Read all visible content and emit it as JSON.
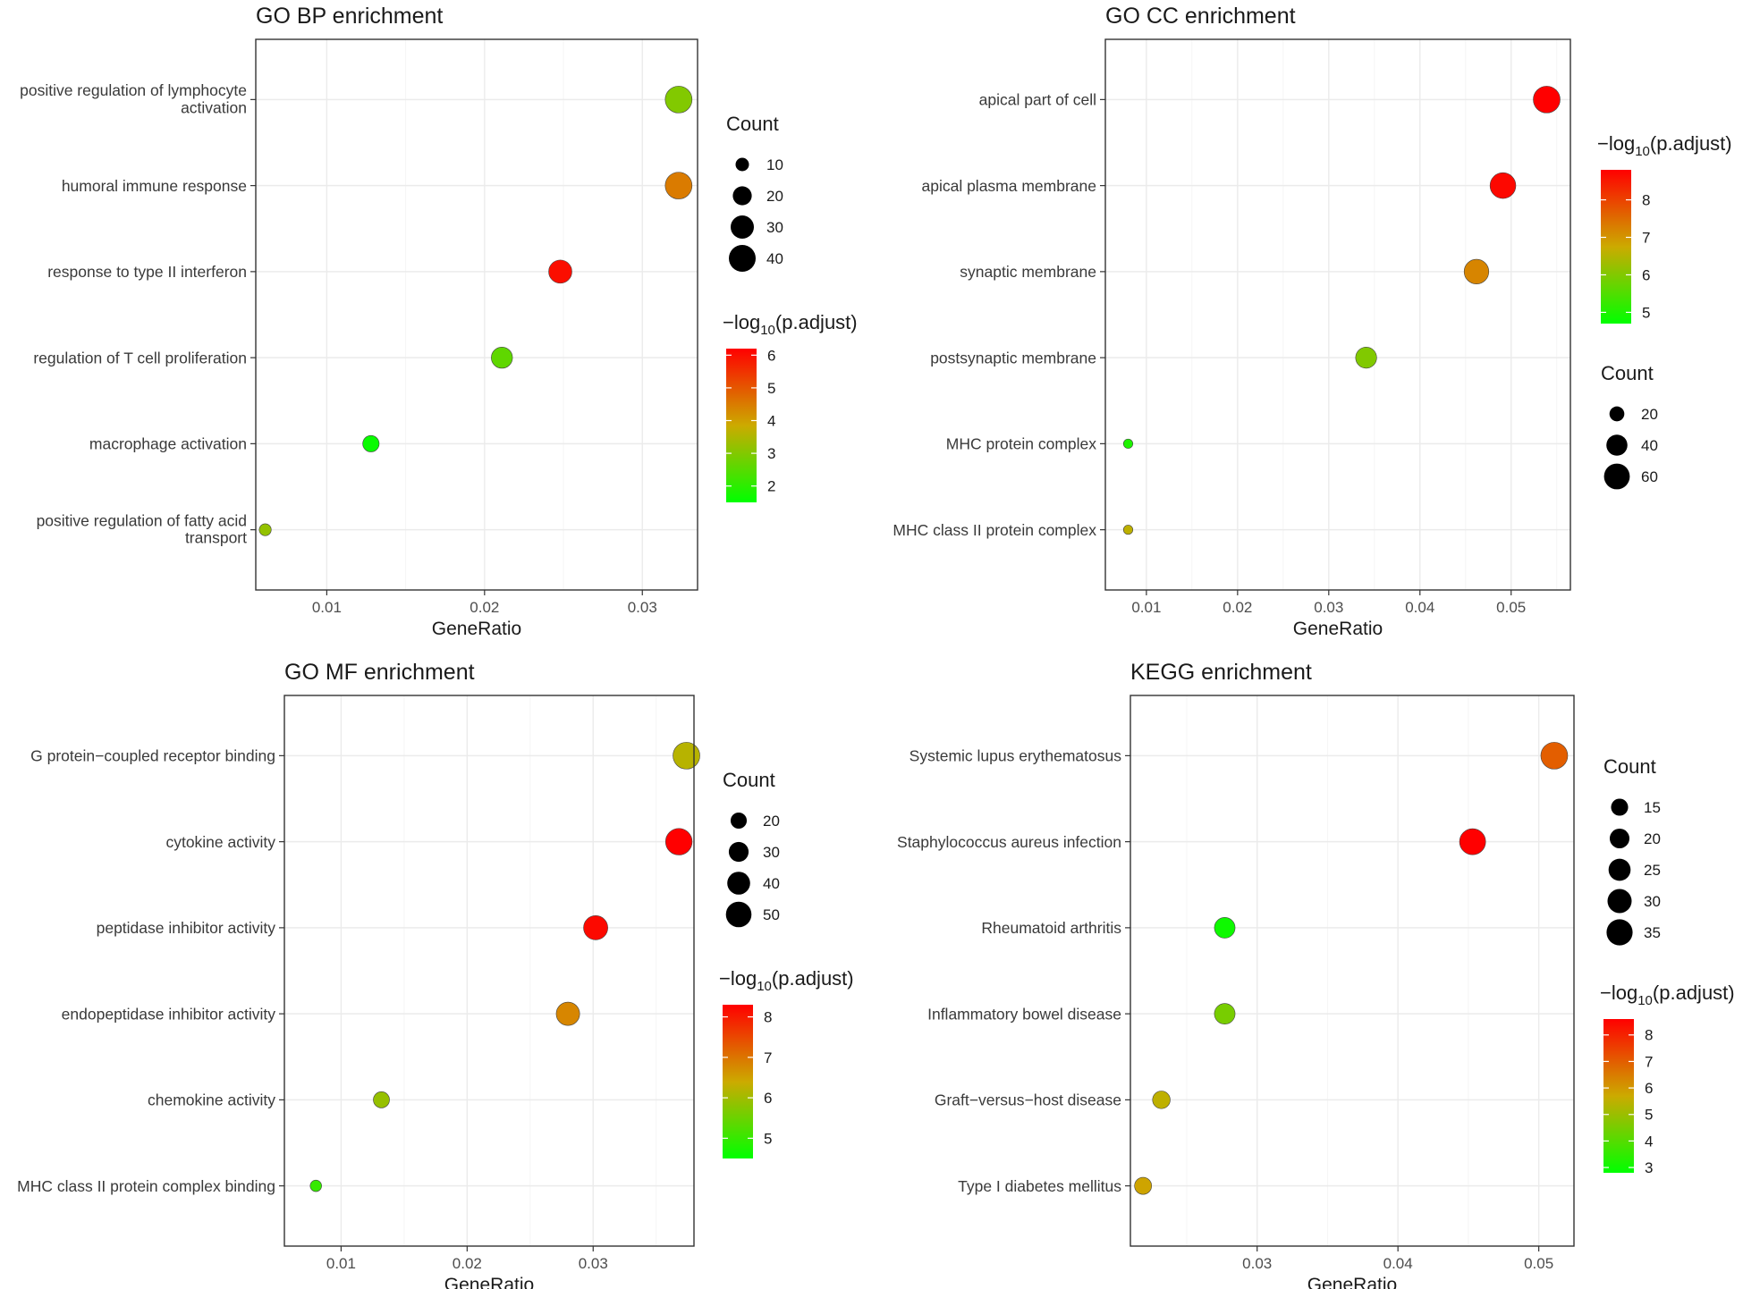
{
  "chart_data": [
    {
      "type": "scatter",
      "title": "GO BP enrichment",
      "xlabel": "GeneRatio",
      "ylabel": "",
      "xlim": [
        0.0055,
        0.0335
      ],
      "xticks": [
        0.01,
        0.02,
        0.03
      ],
      "xtick_labels": [
        "0.01",
        "0.02",
        "0.03"
      ],
      "categories": [
        [
          "positive regulation of lymphocyte",
          "activation"
        ],
        [
          "humoral immune response"
        ],
        [
          "response to type II interferon"
        ],
        [
          "regulation of T cell proliferation"
        ],
        [
          "macrophage activation"
        ],
        [
          "positive regulation of fatty acid",
          "transport"
        ]
      ],
      "x": [
        0.0323,
        0.0323,
        0.0248,
        0.0211,
        0.0128,
        0.0061
      ],
      "count": [
        40,
        40,
        30,
        25,
        15,
        8
      ],
      "neg_log10_padj": [
        3.0,
        4.5,
        6.0,
        2.6,
        1.6,
        3.2
      ],
      "size_legend": {
        "title": "Count",
        "values": [
          10,
          20,
          30,
          40
        ],
        "labels": [
          "10",
          "20",
          "30",
          "40"
        ]
      },
      "color_legend": {
        "title_main": "−log",
        "title_sub": "10",
        "title_rest": "(p.adjust)",
        "min": 1.5,
        "max": 6.2,
        "ticks": [
          2,
          3,
          4,
          5,
          6
        ],
        "tick_labels": [
          "2",
          "3",
          "4",
          "5",
          "6"
        ]
      }
    },
    {
      "type": "scatter",
      "title": "GO CC enrichment",
      "xlabel": "GeneRatio",
      "ylabel": "",
      "xlim": [
        0.0055,
        0.0565
      ],
      "xticks": [
        0.01,
        0.02,
        0.03,
        0.04,
        0.05
      ],
      "xtick_labels": [
        "0.01",
        "0.02",
        "0.03",
        "0.04",
        "0.05"
      ],
      "categories": [
        [
          "apical part of cell"
        ],
        [
          "apical plasma membrane"
        ],
        [
          "synaptic membrane"
        ],
        [
          "postsynaptic membrane"
        ],
        [
          "MHC protein complex"
        ],
        [
          "MHC class II protein complex"
        ]
      ],
      "x": [
        0.0539,
        0.0491,
        0.0462,
        0.0341,
        0.008,
        0.008
      ],
      "count": [
        65,
        60,
        55,
        40,
        8,
        8
      ],
      "neg_log10_padj": [
        8.8,
        8.7,
        7.2,
        6.0,
        5.0,
        6.6
      ],
      "size_legend": {
        "title": "Count",
        "values": [
          20,
          40,
          60
        ],
        "labels": [
          "20",
          "40",
          "60"
        ]
      },
      "color_legend": {
        "title_main": "−log",
        "title_sub": "10",
        "title_rest": "(p.adjust)",
        "min": 4.7,
        "max": 8.8,
        "ticks": [
          5,
          6,
          7,
          8
        ],
        "tick_labels": [
          "5",
          "6",
          "7",
          "8"
        ]
      }
    },
    {
      "type": "scatter",
      "title": "GO MF enrichment",
      "xlabel": "GeneRatio",
      "ylabel": "",
      "xlim": [
        0.0055,
        0.038
      ],
      "xticks": [
        0.01,
        0.02,
        0.03
      ],
      "xtick_labels": [
        "0.01",
        "0.02",
        "0.03"
      ],
      "categories": [
        [
          "G protein−coupled receptor binding"
        ],
        [
          "cytokine activity"
        ],
        [
          "peptidase inhibitor activity"
        ],
        [
          "endopeptidase inhibitor activity"
        ],
        [
          "chemokine activity"
        ],
        [
          "MHC class II protein complex binding"
        ]
      ],
      "x": [
        0.0374,
        0.0368,
        0.0302,
        0.028,
        0.0132,
        0.008
      ],
      "count": [
        55,
        54,
        45,
        42,
        20,
        10
      ],
      "neg_log10_padj": [
        6.2,
        8.4,
        8.2,
        6.8,
        5.9,
        5.0
      ],
      "size_legend": {
        "title": "Count",
        "values": [
          20,
          30,
          40,
          50
        ],
        "labels": [
          "20",
          "30",
          "40",
          "50"
        ]
      },
      "color_legend": {
        "title_main": "−log",
        "title_sub": "10",
        "title_rest": "(p.adjust)",
        "min": 4.5,
        "max": 8.3,
        "ticks": [
          5,
          6,
          7,
          8
        ],
        "tick_labels": [
          "5",
          "6",
          "7",
          "8"
        ]
      }
    },
    {
      "type": "scatter",
      "title": "KEGG enrichment",
      "xlabel": "GeneRatio",
      "ylabel": "",
      "xlim": [
        0.021,
        0.0525
      ],
      "xticks": [
        0.03,
        0.04,
        0.05
      ],
      "xtick_labels": [
        "0.03",
        "0.04",
        "0.05"
      ],
      "categories": [
        [
          "Systemic lupus erythematosus"
        ],
        [
          "Staphylococcus aureus infection"
        ],
        [
          "Rheumatoid arthritis"
        ],
        [
          "Inflammatory bowel disease"
        ],
        [
          "Graft−versus−host disease"
        ],
        [
          "Type I diabetes mellitus"
        ]
      ],
      "x": [
        0.0511,
        0.0453,
        0.0277,
        0.0277,
        0.0232,
        0.0219
      ],
      "count": [
        37,
        35,
        22,
        22,
        16,
        15
      ],
      "neg_log10_padj": [
        7.0,
        8.8,
        3.0,
        4.5,
        5.5,
        5.8
      ],
      "size_legend": {
        "title": "Count",
        "values": [
          15,
          20,
          25,
          30,
          35
        ],
        "labels": [
          "15",
          "20",
          "25",
          "30",
          "35"
        ]
      },
      "color_legend": {
        "title_main": "−log",
        "title_sub": "10",
        "title_rest": "(p.adjust)",
        "min": 2.8,
        "max": 8.6,
        "ticks": [
          3,
          4,
          5,
          6,
          7,
          8
        ],
        "tick_labels": [
          "3",
          "4",
          "5",
          "6",
          "7",
          "8"
        ]
      }
    }
  ],
  "colors": {
    "low": "#00ff00",
    "mid": "#ccaa00",
    "high": "#ff0000",
    "panel_border": "#333333",
    "grid": "#ebebeb"
  }
}
